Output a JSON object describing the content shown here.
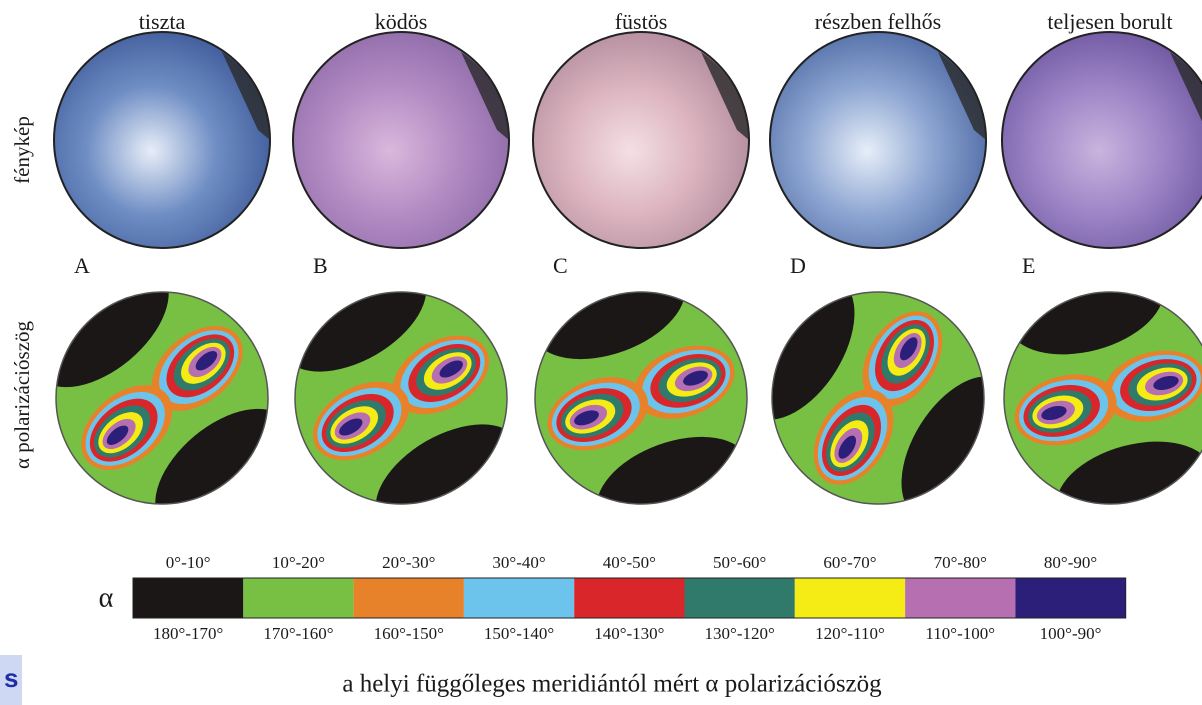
{
  "columns": [
    {
      "title": "tiszta",
      "letter": "A"
    },
    {
      "title": "ködös",
      "letter": "B"
    },
    {
      "title": "füstös",
      "letter": "C"
    },
    {
      "title": "részben felhős",
      "letter": "D"
    },
    {
      "title": "teljesen borult",
      "letter": "E"
    }
  ],
  "row_labels": [
    "fénykép",
    "α polarizációszög"
  ],
  "legend": {
    "symbol": "α",
    "items": [
      {
        "top": "0°-10°",
        "bottom": "180°-170°",
        "color": "#1b1716"
      },
      {
        "top": "10°-20°",
        "bottom": "170°-160°",
        "color": "#77c043"
      },
      {
        "top": "20°-30°",
        "bottom": "160°-150°",
        "color": "#e8822a"
      },
      {
        "top": "30°-40°",
        "bottom": "150°-140°",
        "color": "#6cc4ec"
      },
      {
        "top": "40°-50°",
        "bottom": "140°-130°",
        "color": "#d9262a"
      },
      {
        "top": "50°-60°",
        "bottom": "130°-120°",
        "color": "#2f7a6b"
      },
      {
        "top": "60°-70°",
        "bottom": "120°-110°",
        "color": "#f5ec15"
      },
      {
        "top": "70°-80°",
        "bottom": "110°-100°",
        "color": "#b66fb0"
      },
      {
        "top": "80°-90°",
        "bottom": "100°-90°",
        "color": "#2b1f7a"
      }
    ]
  },
  "caption": "a helyi függőleges meridiántól mért α polarizációszög",
  "corner_text": "s"
}
